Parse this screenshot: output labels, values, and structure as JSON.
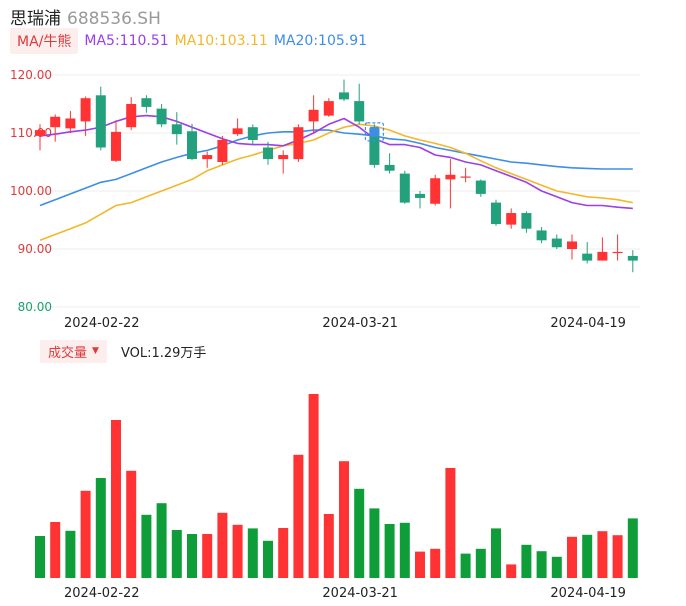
{
  "header": {
    "name": "思瑞浦",
    "code": "688536.SH"
  },
  "ma_row": {
    "toggle": "MA/牛熊",
    "ma5": "MA5:110.51",
    "ma10": "MA10:103.11",
    "ma20": "MA20:105.91"
  },
  "vol_row": {
    "toggle": "成交量",
    "toggle_icon": "triangle-down-icon",
    "vol": "VOL:1.29万手"
  },
  "colors": {
    "up": "#ff3333",
    "down": "#0f9d3a",
    "candle_down": "#23a07c",
    "ma5": "#9b3fe6",
    "ma10": "#f3b72a",
    "ma20": "#3e8ee6",
    "marker": "#3e8ee6"
  },
  "chart_data": [
    {
      "type": "candlestick",
      "y_ticks": [
        "120.00",
        "110.00",
        "100.00",
        "90.00",
        "80.00"
      ],
      "ylim": [
        80,
        120
      ],
      "x_ticks": [
        {
          "index": 4,
          "label": "2024-02-22"
        },
        {
          "index": 21,
          "label": "2024-03-21"
        },
        {
          "index": 36,
          "label": "2024-04-19"
        }
      ],
      "candles": [
        {
          "o": 109.5,
          "c": 110.5,
          "h": 111.5,
          "l": 107.0
        },
        {
          "o": 111.0,
          "c": 112.8,
          "h": 113.2,
          "l": 108.5
        },
        {
          "o": 110.8,
          "c": 112.5,
          "h": 113.8,
          "l": 110.0
        },
        {
          "o": 112.0,
          "c": 116.0,
          "h": 116.3,
          "l": 109.5
        },
        {
          "o": 116.5,
          "c": 107.5,
          "h": 118.0,
          "l": 107.0
        },
        {
          "o": 105.2,
          "c": 110.2,
          "h": 112.2,
          "l": 105.0
        },
        {
          "o": 111.0,
          "c": 115.0,
          "h": 116.2,
          "l": 110.5
        },
        {
          "o": 116.0,
          "c": 114.5,
          "h": 116.5,
          "l": 113.5
        },
        {
          "o": 114.2,
          "c": 111.5,
          "h": 115.0,
          "l": 111.0
        },
        {
          "o": 111.5,
          "c": 109.8,
          "h": 113.6,
          "l": 108.0
        },
        {
          "o": 110.3,
          "c": 105.5,
          "h": 111.6,
          "l": 105.3
        },
        {
          "o": 105.5,
          "c": 106.2,
          "h": 106.8,
          "l": 104.0
        },
        {
          "o": 105.0,
          "c": 108.8,
          "h": 109.5,
          "l": 104.5
        },
        {
          "o": 109.8,
          "c": 110.8,
          "h": 112.5,
          "l": 109.5
        },
        {
          "o": 111.0,
          "c": 108.8,
          "h": 111.5,
          "l": 108.0
        },
        {
          "o": 107.5,
          "c": 105.5,
          "h": 108.5,
          "l": 104.5
        },
        {
          "o": 105.5,
          "c": 106.2,
          "h": 107.0,
          "l": 103.0
        },
        {
          "o": 105.5,
          "c": 111.0,
          "h": 111.5,
          "l": 105.0
        },
        {
          "o": 112.0,
          "c": 114.0,
          "h": 116.5,
          "l": 110.0
        },
        {
          "o": 113.0,
          "c": 115.5,
          "h": 116.0,
          "l": 112.8
        },
        {
          "o": 117.0,
          "c": 115.8,
          "h": 119.2,
          "l": 115.5
        },
        {
          "o": 115.5,
          "c": 112.0,
          "h": 118.5,
          "l": 111.5
        },
        {
          "o": 110.8,
          "c": 104.5,
          "h": 111.5,
          "l": 104.0
        },
        {
          "o": 104.5,
          "c": 103.5,
          "h": 106.5,
          "l": 103.0
        },
        {
          "o": 103.0,
          "c": 98.0,
          "h": 103.5,
          "l": 97.8
        },
        {
          "o": 99.5,
          "c": 98.8,
          "h": 100.0,
          "l": 97.0
        },
        {
          "o": 97.8,
          "c": 102.2,
          "h": 102.8,
          "l": 97.5
        },
        {
          "o": 102.0,
          "c": 102.8,
          "h": 105.5,
          "l": 97.0
        },
        {
          "o": 102.5,
          "c": 102.5,
          "h": 104.0,
          "l": 101.5
        },
        {
          "o": 101.8,
          "c": 99.5,
          "h": 102.0,
          "l": 99.0
        },
        {
          "o": 98.0,
          "c": 94.3,
          "h": 98.5,
          "l": 94.0
        },
        {
          "o": 94.2,
          "c": 96.2,
          "h": 97.0,
          "l": 93.5
        },
        {
          "o": 96.2,
          "c": 93.5,
          "h": 96.5,
          "l": 92.8
        },
        {
          "o": 93.2,
          "c": 91.5,
          "h": 93.8,
          "l": 91.0
        },
        {
          "o": 91.8,
          "c": 90.3,
          "h": 92.5,
          "l": 90.0
        },
        {
          "o": 90.0,
          "c": 91.3,
          "h": 92.5,
          "l": 88.2
        },
        {
          "o": 89.2,
          "c": 88.0,
          "h": 91.2,
          "l": 87.5
        },
        {
          "o": 88.0,
          "c": 89.5,
          "h": 92.0,
          "l": 88.0
        },
        {
          "o": 89.5,
          "c": 89.5,
          "h": 92.5,
          "l": 88.0
        },
        {
          "o": 88.8,
          "c": 88.0,
          "h": 89.8,
          "l": 86.0
        }
      ],
      "ma5": [
        109.5,
        109.8,
        110.2,
        110.5,
        111.0,
        112.0,
        112.8,
        113.0,
        112.8,
        112.0,
        111.0,
        110.0,
        109.0,
        108.2,
        108.0,
        108.0,
        107.8,
        108.8,
        110.0,
        111.5,
        112.5,
        111.0,
        109.0,
        108.0,
        108.0,
        107.5,
        106.2,
        105.8,
        105.0,
        104.5,
        103.5,
        102.5,
        101.5,
        100.0,
        99.0,
        98.0,
        97.5,
        97.5,
        97.2,
        97.0
      ],
      "ma10": [
        91.5,
        92.5,
        93.5,
        94.5,
        96.0,
        97.5,
        98.0,
        99.0,
        100.0,
        101.0,
        102.0,
        103.5,
        104.5,
        105.5,
        106.2,
        107.0,
        107.8,
        108.2,
        108.8,
        110.0,
        111.0,
        111.5,
        111.2,
        110.5,
        109.5,
        108.8,
        108.2,
        107.5,
        106.5,
        105.2,
        104.0,
        103.0,
        102.0,
        101.0,
        100.0,
        99.5,
        99.0,
        98.8,
        98.5,
        98.0
      ],
      "ma20": [
        97.5,
        98.5,
        99.5,
        100.5,
        101.5,
        102.0,
        103.0,
        104.0,
        105.0,
        105.8,
        106.5,
        107.0,
        107.8,
        108.8,
        109.5,
        110.0,
        110.2,
        110.2,
        110.5,
        110.5,
        110.0,
        109.8,
        109.5,
        109.0,
        108.8,
        108.2,
        107.5,
        107.0,
        106.5,
        106.0,
        105.5,
        105.0,
        104.8,
        104.5,
        104.2,
        104.0,
        103.9,
        103.8,
        103.8,
        103.8
      ]
    },
    {
      "type": "bar",
      "series": [
        {
          "values": [
            105,
            140,
            118,
            218,
            250,
            395,
            268,
            158,
            187,
            120,
            110,
            110,
            163,
            133,
            124,
            93,
            125,
            308,
            460,
            160,
            292,
            223,
            174,
            135,
            138,
            66,
            73,
            275,
            61,
            73,
            124,
            34,
            83,
            67,
            53,
            103,
            108,
            117,
            107,
            149
          ],
          "direction": [
            "down",
            "up",
            "down",
            "up",
            "down",
            "up",
            "up",
            "down",
            "down",
            "down",
            "down",
            "up",
            "up",
            "up",
            "down",
            "down",
            "up",
            "up",
            "up",
            "up",
            "up",
            "down",
            "down",
            "down",
            "down",
            "up",
            "up",
            "up",
            "down",
            "down",
            "down",
            "up",
            "down",
            "down",
            "down",
            "up",
            "down",
            "up",
            "up",
            "down"
          ]
        }
      ],
      "x_ticks": [
        {
          "index": 4,
          "label": "2024-02-22"
        },
        {
          "index": 21,
          "label": "2024-03-21"
        },
        {
          "index": 36,
          "label": "2024-04-19"
        }
      ]
    }
  ]
}
